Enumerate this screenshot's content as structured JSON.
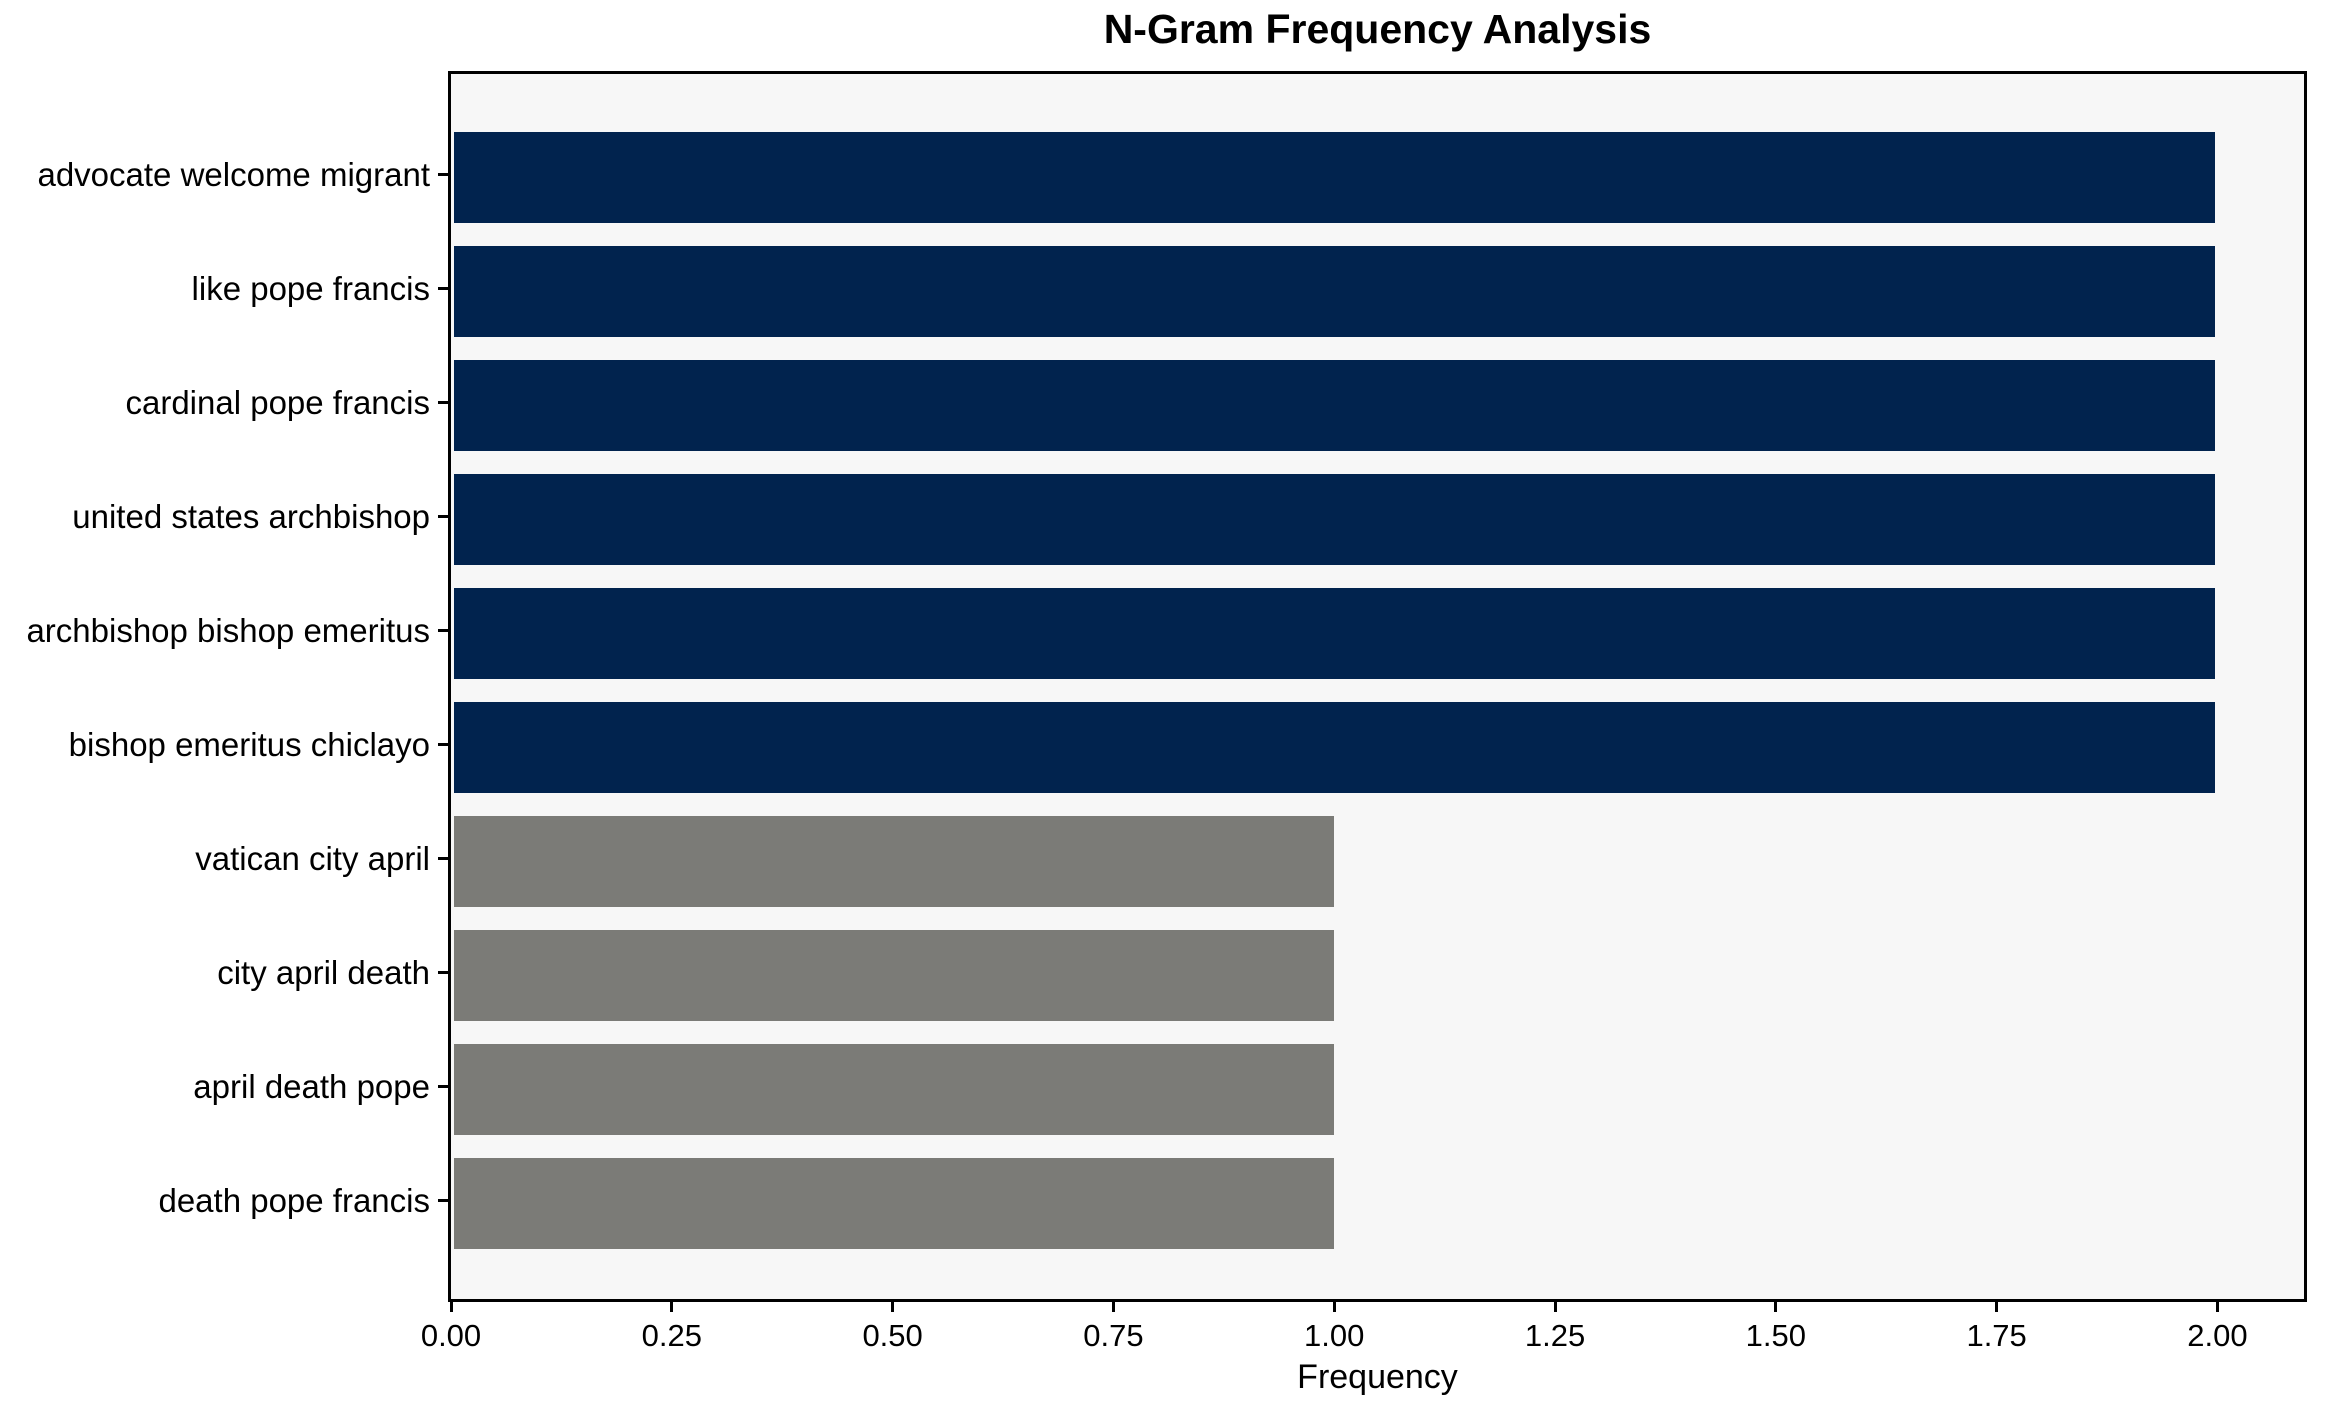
{
  "chart_data": {
    "type": "bar",
    "orientation": "horizontal",
    "title": "N-Gram Frequency Analysis",
    "xlabel": "Frequency",
    "ylabel": "",
    "categories": [
      "advocate welcome migrant",
      "like pope francis",
      "cardinal pope francis",
      "united states archbishop",
      "archbishop bishop emeritus",
      "bishop emeritus chiclayo",
      "vatican city april",
      "city april death",
      "april death pope",
      "death pope francis"
    ],
    "values": [
      2,
      2,
      2,
      2,
      2,
      2,
      1,
      1,
      1,
      1
    ],
    "bar_colors": [
      "#01234e",
      "#01234e",
      "#01234e",
      "#01234e",
      "#01234e",
      "#01234e",
      "#7b7b77",
      "#7b7b77",
      "#7b7b77",
      "#7b7b77"
    ],
    "xticks": {
      "values": [
        0,
        0.25,
        0.5,
        0.75,
        1.0,
        1.25,
        1.5,
        1.75,
        2.0
      ],
      "labels": [
        "0.00",
        "0.25",
        "0.50",
        "0.75",
        "1.00",
        "1.25",
        "1.50",
        "1.75",
        "2.00"
      ]
    },
    "xlim": [
      0,
      2.098
    ],
    "grid": false,
    "legend": "none",
    "colors": {
      "navy_bar": "#01234e",
      "gray_bar": "#7b7b77",
      "plot_background": "#f7f7f7",
      "figure_background": "#ffffff",
      "axis": "#000000"
    }
  }
}
